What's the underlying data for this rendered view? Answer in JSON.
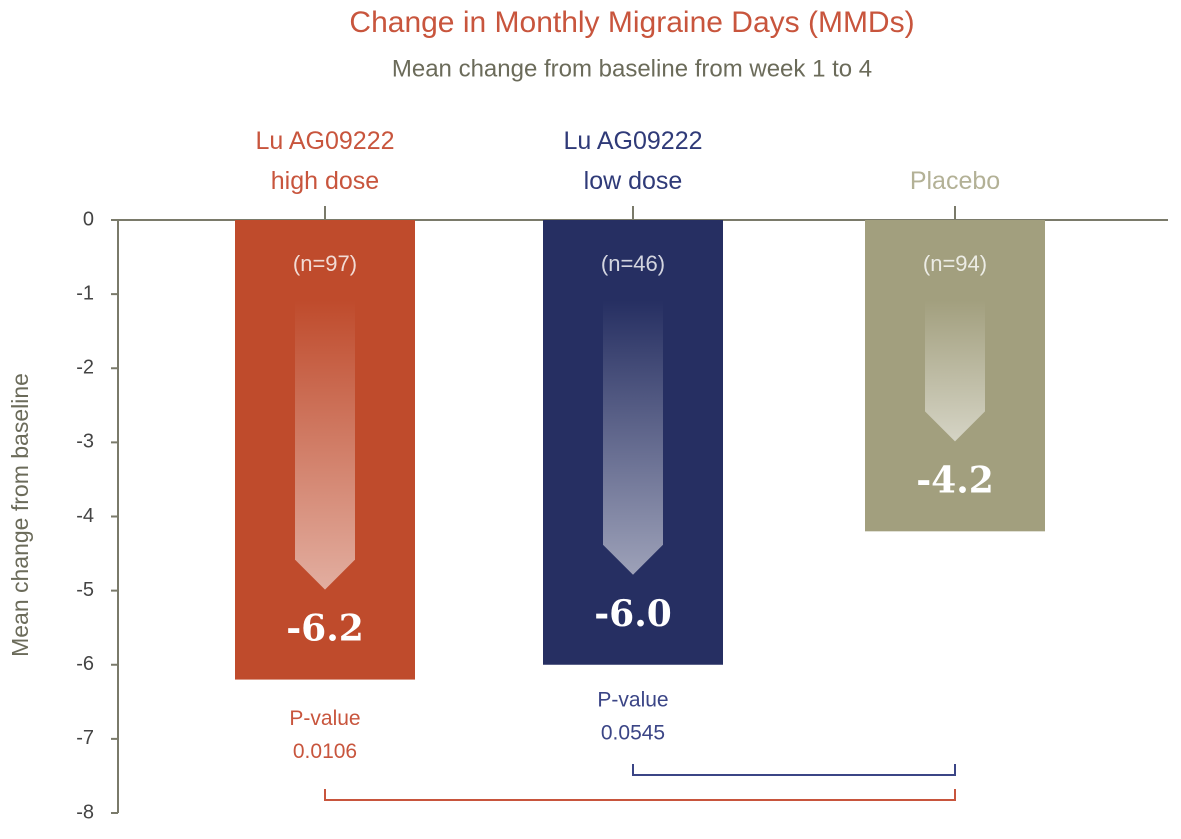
{
  "chart_data": {
    "type": "bar",
    "title": "Change in Monthly Migraine Days (MMDs)",
    "subtitle": "Mean change from baseline from week 1 to 4",
    "ylabel": "Mean change from baseline",
    "categories": [
      "Lu AG09222\nhigh dose",
      "Lu AG09222\nlow dose",
      "Placebo"
    ],
    "values": [
      -6.2,
      -6.0,
      -4.2
    ],
    "value_labels": [
      "-6.2",
      "-6.0",
      "-4.2"
    ],
    "colors": [
      "#bf4b2c",
      "#262f62",
      "#a29f7e"
    ],
    "label_colors": [
      "#c8553d",
      "#2f3a78",
      "#b3b196"
    ],
    "sample_sizes": [
      "(n=97)",
      "(n=46)",
      "(n=94)"
    ],
    "p_values": [
      {
        "label": "P-value",
        "value": "0.0106",
        "color": "#c8553d"
      },
      {
        "label": "P-value",
        "value": "0.0545",
        "color": "#3b4586"
      }
    ],
    "ylim": [
      -8,
      0
    ],
    "yticks": [
      0,
      -1,
      -2,
      -3,
      -4,
      -5,
      -6,
      -7,
      -8
    ]
  }
}
